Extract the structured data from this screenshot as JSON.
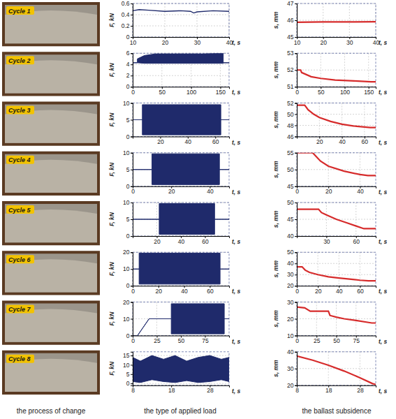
{
  "chart_data": [
    {
      "type": "line",
      "x_label": "t, s",
      "y_label": "F, kN",
      "color": "#1f2a6b",
      "grid": true,
      "xlim": [
        10,
        40
      ],
      "xticks": [
        10,
        20,
        30,
        40
      ],
      "ylim": [
        0,
        0.6
      ],
      "yticks": [
        0,
        0.2,
        0.4,
        0.6
      ],
      "x": [
        10,
        12,
        15,
        20,
        25,
        28,
        29,
        30,
        35,
        40
      ],
      "values": [
        0.47,
        0.49,
        0.48,
        0.46,
        0.47,
        0.46,
        0.43,
        0.45,
        0.47,
        0.46
      ]
    },
    {
      "type": "line",
      "x_label": "t, s",
      "y_label": "s, mm",
      "color": "#d62b2b",
      "grid": true,
      "xlim": [
        10,
        40
      ],
      "xticks": [
        10,
        20,
        30,
        40
      ],
      "ylim": [
        45,
        47
      ],
      "yticks": [
        45,
        46,
        47
      ],
      "x": [
        10,
        20,
        30,
        40
      ],
      "values": [
        45.88,
        45.9,
        45.9,
        45.91
      ]
    },
    {
      "type": "area",
      "x_label": "t, s",
      "y_label": "F, kN",
      "color": "#1f2a6b",
      "grid": true,
      "xlim": [
        0,
        165
      ],
      "xticks": [
        0,
        50,
        100,
        150
      ],
      "ylim": [
        0,
        6
      ],
      "yticks": [
        0,
        2,
        4,
        6
      ],
      "x": [
        0,
        8,
        8,
        20,
        40,
        80,
        120,
        155,
        155,
        165
      ],
      "lower": [
        4.3,
        4.3,
        4.3,
        4.2,
        4.2,
        4.2,
        4.2,
        4.2,
        4.3,
        4.3
      ],
      "values": [
        4.3,
        4.3,
        5.0,
        5.6,
        5.9,
        5.9,
        5.9,
        6.0,
        4.3,
        4.3
      ]
    },
    {
      "type": "line",
      "x_label": "t, s",
      "y_label": "s, mm",
      "color": "#d62b2b",
      "grid": true,
      "xlim": [
        0,
        165
      ],
      "xticks": [
        0,
        50,
        100,
        150
      ],
      "ylim": [
        51,
        53
      ],
      "yticks": [
        51,
        52,
        53
      ],
      "x": [
        0,
        8,
        10,
        30,
        50,
        80,
        120,
        155,
        165
      ],
      "values": [
        52.0,
        52.0,
        51.85,
        51.6,
        51.5,
        51.4,
        51.35,
        51.3,
        51.3
      ]
    },
    {
      "type": "area",
      "x_label": "t, s",
      "y_label": "F, kN",
      "color": "#1f2a6b",
      "grid": true,
      "xlim": [
        0,
        70
      ],
      "xticks": [
        20,
        40,
        60
      ],
      "ylim": [
        0,
        10
      ],
      "yticks": [
        0,
        5,
        10
      ],
      "x": [
        0,
        7,
        7,
        64,
        64,
        70
      ],
      "lower": [
        5,
        5,
        0.5,
        0.5,
        5,
        5
      ],
      "values": [
        5,
        5,
        9.5,
        9.5,
        5,
        5
      ]
    },
    {
      "type": "line",
      "x_label": "t, s",
      "y_label": "s, mm",
      "color": "#d62b2b",
      "grid": true,
      "xlim": [
        0,
        70
      ],
      "xticks": [
        20,
        40,
        60
      ],
      "ylim": [
        46,
        52
      ],
      "yticks": [
        46,
        48,
        50,
        52
      ],
      "x": [
        0,
        7,
        10,
        15,
        20,
        30,
        40,
        50,
        60,
        65,
        70
      ],
      "values": [
        51.6,
        51.6,
        50.8,
        50.0,
        49.4,
        48.7,
        48.2,
        47.9,
        47.7,
        47.6,
        47.6
      ]
    },
    {
      "type": "area",
      "x_label": "t, s",
      "y_label": "F, kN",
      "color": "#1f2a6b",
      "grid": true,
      "xlim": [
        0,
        50
      ],
      "xticks": [
        0,
        20,
        40
      ],
      "ylim": [
        0,
        10
      ],
      "yticks": [
        0,
        5,
        10
      ],
      "x": [
        0,
        10,
        10,
        45,
        45,
        50
      ],
      "lower": [
        5,
        5,
        0.5,
        0.5,
        5,
        5
      ],
      "values": [
        5,
        5,
        9.7,
        9.7,
        5,
        5
      ]
    },
    {
      "type": "line",
      "x_label": "t, s",
      "y_label": "s, mm",
      "color": "#d62b2b",
      "grid": true,
      "xlim": [
        0,
        50
      ],
      "xticks": [
        0,
        20,
        40
      ],
      "ylim": [
        45,
        55
      ],
      "yticks": [
        45,
        50,
        55
      ],
      "x": [
        0,
        10,
        12,
        15,
        20,
        30,
        40,
        45,
        50
      ],
      "values": [
        55,
        55,
        54,
        52.5,
        51,
        49.5,
        48.5,
        48.2,
        48.2
      ]
    },
    {
      "type": "area",
      "x_label": "t, s",
      "y_label": "F, kN",
      "color": "#1f2a6b",
      "grid": true,
      "xlim": [
        0,
        80
      ],
      "xticks": [
        20,
        40,
        60
      ],
      "ylim": [
        0,
        10
      ],
      "yticks": [
        0,
        5,
        10
      ],
      "x": [
        0,
        22,
        22,
        68,
        68,
        80
      ],
      "lower": [
        5,
        5,
        0.5,
        0.5,
        5,
        5
      ],
      "values": [
        5,
        5,
        9.7,
        9.7,
        5,
        5
      ]
    },
    {
      "type": "line",
      "x_label": "t, s",
      "y_label": "s, mm",
      "color": "#d62b2b",
      "grid": true,
      "xlim": [
        0,
        80
      ],
      "xticks": [
        30,
        60
      ],
      "ylim": [
        40,
        50
      ],
      "yticks": [
        40,
        45,
        50
      ],
      "x": [
        0,
        22,
        25,
        30,
        40,
        50,
        60,
        68,
        80
      ],
      "values": [
        48,
        48,
        47,
        46.3,
        45,
        44,
        43,
        42.2,
        42.2
      ]
    },
    {
      "type": "area",
      "x_label": "t, s",
      "y_label": "F, kN",
      "color": "#1f2a6b",
      "grid": true,
      "xlim": [
        0,
        75
      ],
      "xticks": [
        0,
        20,
        40,
        60
      ],
      "ylim": [
        0,
        20
      ],
      "yticks": [
        0,
        10,
        20
      ],
      "x": [
        0,
        5,
        5,
        68,
        68,
        75
      ],
      "lower": [
        10,
        10,
        1,
        1,
        10,
        10
      ],
      "values": [
        10,
        10,
        19.5,
        19.5,
        10,
        10
      ]
    },
    {
      "type": "line",
      "x_label": "t, s",
      "y_label": "s, mm",
      "color": "#d62b2b",
      "grid": true,
      "xlim": [
        0,
        75
      ],
      "xticks": [
        0,
        20,
        40,
        60
      ],
      "ylim": [
        20,
        50
      ],
      "yticks": [
        20,
        30,
        40,
        50
      ],
      "x": [
        0,
        5,
        8,
        12,
        20,
        30,
        40,
        50,
        60,
        68,
        75
      ],
      "values": [
        37,
        37,
        34,
        32,
        30,
        28,
        27,
        26,
        25,
        24.5,
        24.5
      ]
    },
    {
      "type": "area",
      "x_label": "t, s",
      "y_label": "F, kN",
      "color": "#1f2a6b",
      "grid": true,
      "xlim": [
        0,
        100
      ],
      "xticks": [
        0,
        25,
        50,
        75
      ],
      "ylim": [
        0,
        20
      ],
      "yticks": [
        0,
        10,
        20
      ],
      "x": [
        0,
        5,
        17,
        40,
        40,
        95,
        95,
        100
      ],
      "lower": [
        0,
        0,
        10,
        10,
        1,
        1,
        10,
        10
      ],
      "values": [
        0,
        0,
        10,
        10,
        19,
        19,
        10,
        10
      ]
    },
    {
      "type": "line",
      "x_label": "t, s",
      "y_label": "s, mm",
      "color": "#d62b2b",
      "grid": true,
      "xlim": [
        0,
        100
      ],
      "xticks": [
        0,
        25,
        50,
        75
      ],
      "ylim": [
        10,
        30
      ],
      "yticks": [
        10,
        20,
        30
      ],
      "x": [
        0,
        10,
        17,
        40,
        42,
        50,
        60,
        75,
        95,
        100
      ],
      "values": [
        27,
        26.5,
        24.5,
        24.5,
        22,
        21,
        20,
        19,
        17.5,
        17.5
      ]
    },
    {
      "type": "area",
      "x_label": "t, s",
      "y_label": "F, kN",
      "color": "#1f2a6b",
      "grid": true,
      "xlim": [
        8,
        33
      ],
      "xticks": [
        8,
        18,
        28
      ],
      "ylim": [
        -1,
        17
      ],
      "yticks": [
        0,
        5,
        10,
        15
      ],
      "x": [
        8,
        10,
        13,
        16,
        19,
        22,
        25,
        28,
        31,
        33
      ],
      "lower": [
        1,
        0.5,
        2,
        1,
        0.5,
        1.5,
        0.5,
        1,
        2,
        1
      ],
      "values": [
        14,
        12,
        15,
        13,
        15,
        12,
        14,
        15,
        13,
        14
      ]
    },
    {
      "type": "line",
      "x_label": "t, s",
      "y_label": "s, mm",
      "color": "#d62b2b",
      "grid": true,
      "xlim": [
        8,
        33
      ],
      "xticks": [
        8,
        18,
        28
      ],
      "ylim": [
        20,
        40
      ],
      "yticks": [
        20,
        30,
        40
      ],
      "x": [
        8,
        13,
        18,
        23,
        28,
        32,
        33
      ],
      "values": [
        37.5,
        35,
        32,
        28.5,
        24.5,
        21,
        20.5
      ]
    }
  ],
  "photo_labels": [
    "Cycle 1",
    "Cycle 2",
    "Cycle 3",
    "Cycle 4",
    "Cycle 5",
    "Cycle 6",
    "Cycle 7",
    "Cycle 8"
  ],
  "captions": [
    "the process of change",
    "the type of applied load",
    "the ballast subsidence"
  ]
}
